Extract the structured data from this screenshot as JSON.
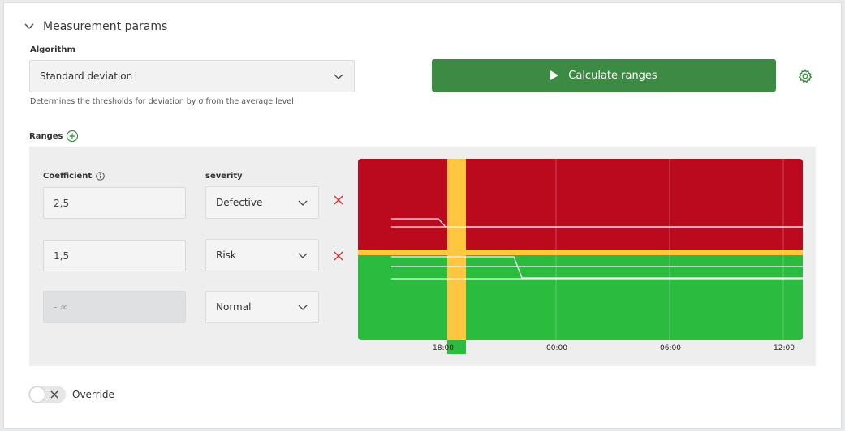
{
  "section": {
    "title": "Measurement params"
  },
  "algorithm": {
    "label": "Algorithm",
    "selected": "Standard deviation",
    "hint": "Determines the thresholds for deviation by σ from the average level"
  },
  "calculate_button": {
    "label": "Calculate ranges"
  },
  "ranges": {
    "label": "Ranges",
    "coefficient_header": "Coefficient",
    "severity_header": "severity",
    "rows": [
      {
        "coefficient": "2,5",
        "severity": "Defective",
        "deletable": true
      },
      {
        "coefficient": "1,5",
        "severity": "Risk",
        "deletable": true
      },
      {
        "coefficient": "- ∞",
        "severity": "Normal",
        "deletable": false
      }
    ]
  },
  "chart_data": {
    "type": "line",
    "x_tick_labels": [
      "18:00",
      "00:00",
      "06:00",
      "12:00"
    ],
    "zones": [
      {
        "severity": "Defective",
        "color": "#bb0a1e"
      },
      {
        "severity": "Risk",
        "color": "#ffc740"
      },
      {
        "severity": "Normal",
        "color": "#2bbb3f"
      }
    ],
    "highlight_color": "#ffc740"
  },
  "override": {
    "label": "Override",
    "enabled": false
  },
  "colors": {
    "accent": "#3c8a43",
    "danger": "#d0312d"
  }
}
